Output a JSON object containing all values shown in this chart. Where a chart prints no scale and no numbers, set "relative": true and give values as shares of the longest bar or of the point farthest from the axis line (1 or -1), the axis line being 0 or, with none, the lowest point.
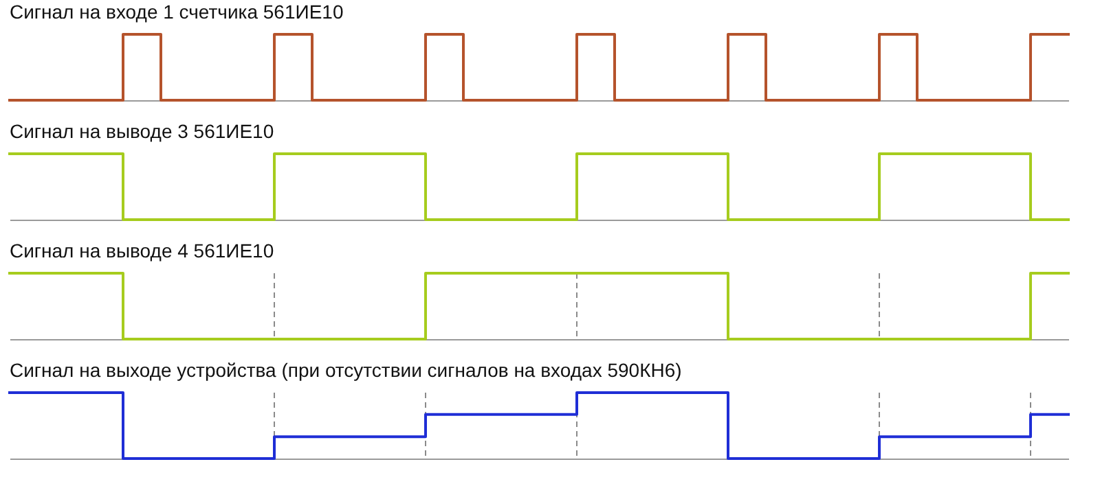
{
  "chart_data": [
    {
      "type": "step",
      "title": "Сигнал на входе 1 счетчика 561ИЕ10",
      "relative": true,
      "categories": [
        null,
        null,
        null,
        null,
        null,
        null,
        null,
        null,
        null,
        null,
        null,
        null,
        null,
        null,
        null,
        null,
        null,
        null,
        null,
        null,
        null,
        null,
        null,
        null,
        null,
        null,
        null,
        null,
        null
      ],
      "series": [
        {
          "color": "#b5532c",
          "values": [
            0,
            0,
            0,
            1,
            0,
            0,
            0,
            1,
            0,
            0,
            0,
            1,
            0,
            0,
            0,
            1,
            0,
            0,
            0,
            1,
            0,
            0,
            0,
            1,
            0,
            0,
            0,
            1,
            1
          ]
        }
      ]
    },
    {
      "type": "step",
      "title": "Сигнал на выводе 3 561ИЕ10",
      "relative": true,
      "grid": "x",
      "categories": [
        null,
        null,
        null,
        null,
        null,
        null,
        null,
        null,
        null,
        null,
        null,
        null,
        null,
        null,
        null,
        null,
        null,
        null,
        null,
        null,
        null,
        null,
        null,
        null,
        null,
        null,
        null,
        null,
        null
      ],
      "series": [
        {
          "color": "#a6cc1e",
          "values": [
            1,
            1,
            1,
            0,
            0,
            0,
            0,
            1,
            1,
            1,
            1,
            0,
            0,
            0,
            0,
            1,
            1,
            1,
            1,
            0,
            0,
            0,
            0,
            1,
            1,
            1,
            1,
            0,
            0
          ]
        }
      ]
    },
    {
      "type": "step",
      "title": "Сигнал на выводе 4 561ИЕ10",
      "relative": true,
      "grid": "x",
      "categories": [
        null,
        null,
        null,
        null,
        null,
        null,
        null,
        null,
        null,
        null,
        null,
        null,
        null,
        null,
        null,
        null,
        null,
        null,
        null,
        null,
        null,
        null,
        null,
        null,
        null,
        null,
        null,
        null,
        null
      ],
      "series": [
        {
          "color": "#a6cc1e",
          "values": [
            1,
            1,
            1,
            0,
            0,
            0,
            0,
            0,
            0,
            0,
            0,
            1,
            1,
            1,
            1,
            1,
            1,
            1,
            1,
            0,
            0,
            0,
            0,
            0,
            0,
            0,
            0,
            1,
            1
          ]
        }
      ]
    },
    {
      "type": "step",
      "title": "Сигнал на выходе устройства (при отсутствии сигналов на входах 590КН6)",
      "relative": true,
      "grid": "x",
      "categories": [
        null,
        null,
        null,
        null,
        null,
        null,
        null,
        null,
        null,
        null,
        null,
        null,
        null,
        null,
        null,
        null,
        null,
        null,
        null,
        null,
        null,
        null,
        null,
        null,
        null,
        null,
        null,
        null,
        null
      ],
      "series": [
        {
          "color": "#1f2ed6",
          "values": [
            1,
            1,
            1,
            0,
            0,
            0,
            0,
            0.33,
            0.33,
            0.33,
            0.33,
            0.67,
            0.67,
            0.67,
            0.67,
            1,
            1,
            1,
            1,
            0,
            0,
            0,
            0,
            0.33,
            0.33,
            0.33,
            0.33,
            0.67,
            0.67
          ]
        }
      ]
    }
  ]
}
